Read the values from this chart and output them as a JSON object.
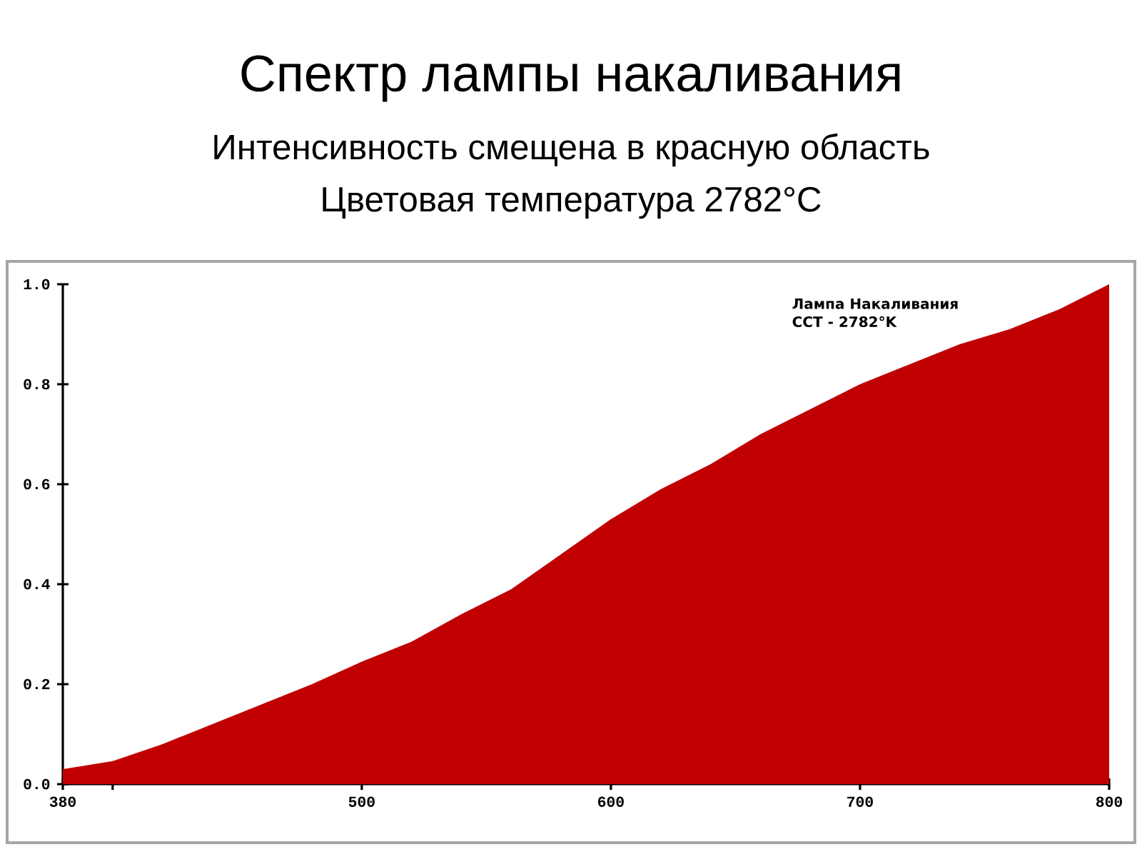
{
  "chart_data": {
    "type": "area",
    "title": "Спектр лампы накаливания",
    "subtitle": "Интенсивность смещена в красную область",
    "annotations": [
      "Цветовая температура 2782°C",
      "Лампа Накаливания",
      "CCT - 2782°K"
    ],
    "x": [
      380,
      400,
      420,
      440,
      450,
      460,
      480,
      500,
      520,
      540,
      560,
      580,
      600,
      620,
      640,
      660,
      680,
      700,
      720,
      740,
      760,
      780,
      800
    ],
    "values": [
      0.03,
      0.046,
      0.08,
      0.12,
      0.14,
      0.16,
      0.2,
      0.245,
      0.285,
      0.34,
      0.39,
      0.46,
      0.53,
      0.59,
      0.64,
      0.7,
      0.75,
      0.8,
      0.84,
      0.88,
      0.91,
      0.95,
      1.0
    ],
    "color": "#c00000",
    "xlim": [
      380,
      800
    ],
    "ylim": [
      0,
      1.0
    ],
    "xticks": [
      380,
      {
        "value": 400,
        "label": null
      },
      500,
      600,
      700,
      800
    ],
    "yticks": [
      {
        "value": 0,
        "label": "0.0"
      },
      0.2,
      0.4,
      0.6,
      0.8,
      {
        "value": 1.0,
        "label": "1.0"
      }
    ],
    "grid": false
  }
}
